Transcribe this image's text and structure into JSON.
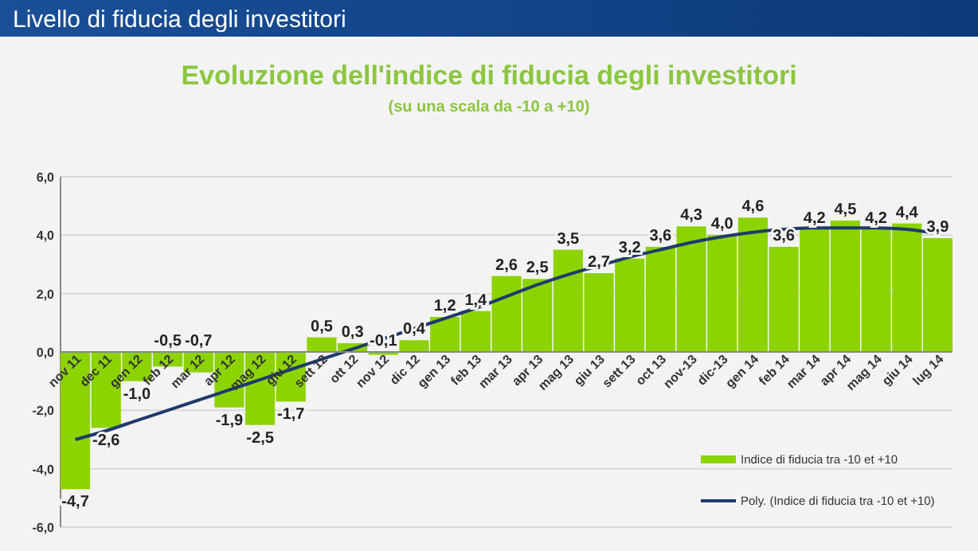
{
  "chart_data": {
    "type": "bar",
    "title": "Evoluzione dell'indice di fiducia degli investitori",
    "subtitle": "(su una scala da -10 a +10)",
    "annotations": [
      "Livello di fiducia degli investitori"
    ],
    "categories": [
      "nov 11",
      "dec 11",
      "gen 12",
      "feb 12",
      "mar 12",
      "apr 12",
      "mag 12",
      "giu 12",
      "sett 12",
      "ott 12",
      "nov 12",
      "dic 12",
      "gen 13",
      "feb 13",
      "mar 13",
      "apr 13",
      "mag 13",
      "giu 13",
      "sett 13",
      "oct 13",
      "nov-13",
      "dic-13",
      "gen 14",
      "feb 14",
      "mar 14",
      "apr 14",
      "mag 14",
      "giu 14",
      "lug 14"
    ],
    "series": [
      {
        "name": "Indice di fiducia tra -10 et +10",
        "color": "#8cd300",
        "values": [
          -4.7,
          -2.6,
          -1.0,
          -0.5,
          -0.7,
          -1.9,
          -2.5,
          -1.7,
          0.5,
          0.3,
          -0.1,
          0.4,
          1.2,
          1.4,
          2.6,
          2.5,
          3.5,
          2.7,
          3.2,
          3.6,
          4.3,
          4.0,
          4.6,
          3.6,
          4.2,
          4.5,
          4.2,
          4.4,
          3.9
        ],
        "value_labels": [
          "-4,7",
          "-2,6",
          "-1,0",
          "-0,5",
          "-0,7",
          "-1,9",
          "-2,5",
          "-1,7",
          "0,5",
          "0,3",
          "-0,1",
          "0,4",
          "1,2",
          "1,4",
          "2,6",
          "2,5",
          "3,5",
          "2,7",
          "3,2",
          "3,6",
          "4,3",
          "4,0",
          "4,6",
          "3,6",
          "4,2",
          "4,5",
          "4,2",
          "4,4",
          "3,9"
        ]
      },
      {
        "name": "Poly. (Indice di fiducia tra -10 et +10)",
        "type": "line",
        "color": "#1f3a6e",
        "marker": "none",
        "values": [
          -3.0,
          -2.7,
          -2.35,
          -2.0,
          -1.65,
          -1.3,
          -0.95,
          -0.6,
          -0.25,
          0.1,
          0.45,
          0.8,
          1.15,
          1.5,
          1.9,
          2.3,
          2.65,
          2.95,
          3.25,
          3.5,
          3.75,
          3.95,
          4.1,
          4.2,
          4.25,
          4.25,
          4.25,
          4.2,
          4.05
        ]
      }
    ],
    "ylim": [
      -6,
      6
    ],
    "yticks": [
      {
        "value": -6,
        "label": "-6,0"
      },
      {
        "value": -4,
        "label": "-4,0"
      },
      {
        "value": -2,
        "label": "-2,0"
      },
      {
        "value": 0,
        "label": "0,0"
      },
      {
        "value": 2,
        "label": "2,0"
      },
      {
        "value": 4,
        "label": "4,0"
      },
      {
        "value": 6,
        "label": "6,0"
      }
    ],
    "grid": "y",
    "legend": "bottom right"
  }
}
